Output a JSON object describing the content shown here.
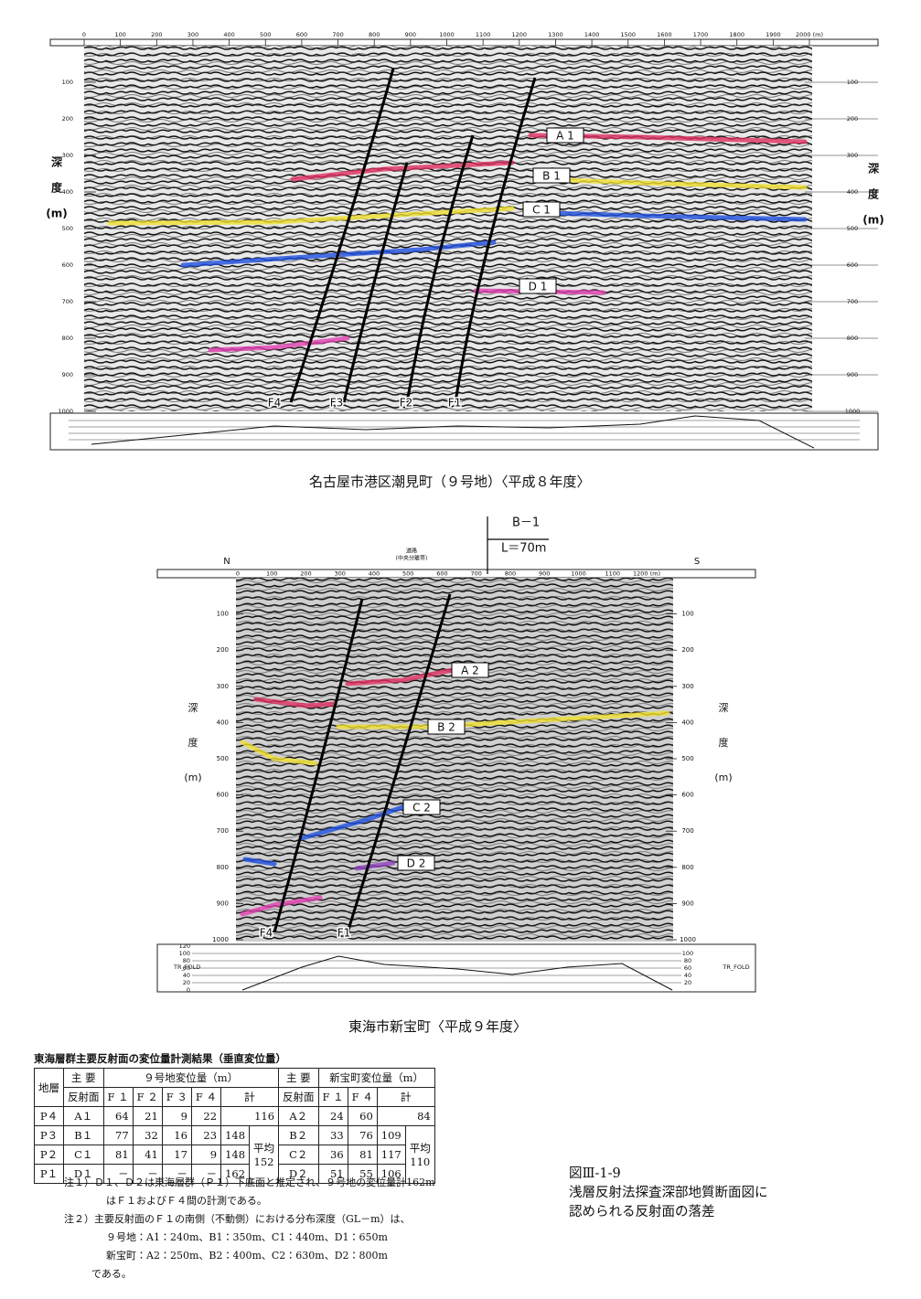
{
  "section1": {
    "distance_ticks": [
      "0",
      "100",
      "200",
      "300",
      "400",
      "500",
      "600",
      "700",
      "800",
      "900",
      "1000",
      "1100",
      "1200",
      "1300",
      "1400",
      "1500",
      "1600",
      "1700",
      "1800",
      "1900",
      "2000 (m)"
    ],
    "depth_ticks": [
      "100",
      "200",
      "300",
      "400",
      "500",
      "600",
      "700",
      "800",
      "900",
      "1000"
    ],
    "depth_label": [
      "深",
      "度",
      "(m)"
    ],
    "faults": [
      "F4",
      "F3",
      "F2",
      "F1"
    ],
    "reflectors": [
      "A 1",
      "B 1",
      "C 1",
      "D 1"
    ],
    "caption": "名古屋市港区潮見町（９号地）〈平成８年度〉"
  },
  "section2": {
    "north": "N",
    "south": "S",
    "road": [
      "道路",
      "(中央分離帯)"
    ],
    "borehole": [
      "B－1",
      "L＝70m"
    ],
    "distance_ticks": [
      "0",
      "100",
      "200",
      "300",
      "400",
      "500",
      "600",
      "700",
      "800",
      "900",
      "1000",
      "1100",
      "1200 (m)"
    ],
    "depth_ticks": [
      "100",
      "200",
      "300",
      "400",
      "500",
      "600",
      "700",
      "800",
      "900",
      "1000"
    ],
    "depth_label": [
      "深",
      "度",
      "(m)"
    ],
    "fold_ticks": [
      "120",
      "100",
      "80",
      "60",
      "40",
      "20",
      "0"
    ],
    "fold_label": "TR_FOLD",
    "faults": [
      "F4",
      "F1"
    ],
    "reflectors": [
      "A 2",
      "B 2",
      "C 2",
      "D 2"
    ],
    "caption": "東海市新宝町〈平成９年度〉"
  },
  "table": {
    "title": "東海層群主要反射面の変位量計測結果（垂直変位量）",
    "head1": [
      "地層",
      "主 要",
      "９号地変位量（m）",
      "主 要",
      "新宝町変位量（m）"
    ],
    "head2": [
      "反射面",
      "F １",
      "F ２",
      "F ３",
      "F ４",
      "計",
      "反射面",
      "F １",
      "F ４",
      "計"
    ],
    "rows": [
      [
        "P４",
        "A１",
        64,
        21,
        9,
        22,
        116,
        "A２",
        24,
        60,
        84
      ],
      [
        "P３",
        "B１",
        77,
        32,
        16,
        23,
        148,
        "B２",
        33,
        76,
        109
      ],
      [
        "P２",
        "C１",
        81,
        41,
        17,
        9,
        148,
        "C２",
        36,
        81,
        117
      ],
      [
        "P１",
        "D１",
        "－",
        "－",
        "－",
        "－",
        162,
        "D２",
        51,
        55,
        106
      ]
    ],
    "avg_label": "平均",
    "avg1": 152,
    "avg2": 110
  },
  "notes": [
    "注１）Ｄ１、Ｄ２は東海層群（Ｐ１）下底面と推定され、９号地の変位量計162m",
    "はＦ１およびＦ４間の計測である。",
    "注２）主要反射面のＦ１の南側（不動側）における分布深度（GL－m）は、",
    "９号地：A1：240m、B1：350m、C1：440m、D1：650m",
    "新宝町：A2：250m、B2：400m、C2：630m、D2：800m",
    "である。"
  ],
  "figure_caption": [
    "図Ⅲ-1-9",
    "浅層反射法探査深部地質断面図に",
    "認められる反射面の落差"
  ]
}
